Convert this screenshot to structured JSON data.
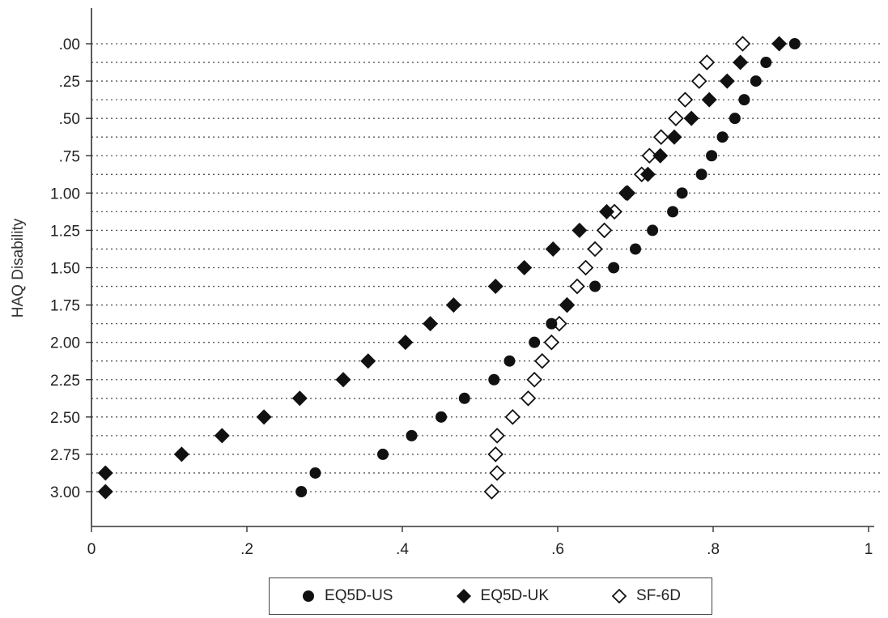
{
  "chart_data": {
    "type": "scatter",
    "orientation": "horizontal-dot-plot",
    "ylabel": "HAQ Disability",
    "xlabel": "",
    "xlim": [
      0,
      1
    ],
    "xticks": [
      0,
      0.2,
      0.4,
      0.6,
      0.8,
      1
    ],
    "xtick_labels": [
      "0",
      ".2",
      ".4",
      ".6",
      ".8",
      "1"
    ],
    "yticks": [
      0,
      0.25,
      0.5,
      0.75,
      1,
      1.25,
      1.5,
      1.75,
      2,
      2.25,
      2.5,
      2.75,
      3
    ],
    "ytick_labels": [
      ".00",
      ".25",
      ".50",
      ".75",
      "1.00",
      "1.25",
      "1.50",
      "1.75",
      "2.00",
      "2.25",
      "2.50",
      "2.75",
      "3.00"
    ],
    "y_categories": [
      0,
      0.125,
      0.25,
      0.375,
      0.5,
      0.625,
      0.75,
      0.875,
      1,
      1.125,
      1.25,
      1.375,
      1.5,
      1.625,
      1.75,
      1.875,
      2,
      2.125,
      2.25,
      2.375,
      2.5,
      2.625,
      2.75,
      2.875,
      3
    ],
    "grid": "dotted horizontal lines at each HAQ level",
    "legend_placement": "bottom",
    "series": [
      {
        "name": "EQ5D-US",
        "marker": "filled-circle",
        "values": [
          0.905,
          0.868,
          0.855,
          0.84,
          0.828,
          0.812,
          0.798,
          0.785,
          0.76,
          0.748,
          0.722,
          0.7,
          0.672,
          0.648,
          0.612,
          0.592,
          0.57,
          0.538,
          0.518,
          0.48,
          0.45,
          0.412,
          0.375,
          0.288,
          0.27
        ]
      },
      {
        "name": "EQ5D-UK",
        "marker": "filled-diamond",
        "values": [
          0.885,
          0.835,
          0.818,
          0.795,
          0.772,
          0.75,
          0.732,
          0.716,
          0.688,
          0.663,
          0.628,
          0.594,
          0.557,
          0.52,
          0.466,
          0.436,
          0.404,
          0.356,
          0.324,
          0.268,
          0.222,
          0.168,
          0.116,
          0.018,
          0.018
        ]
      },
      {
        "name": "SF-6D",
        "marker": "open-diamond",
        "values": [
          0.838,
          0.792,
          0.782,
          0.764,
          0.752,
          0.733,
          0.718,
          0.708,
          0.69,
          0.673,
          0.66,
          0.648,
          0.636,
          0.625,
          0.612,
          0.602,
          0.592,
          0.58,
          0.57,
          0.562,
          0.542,
          0.522,
          0.52,
          0.522,
          0.515
        ]
      }
    ]
  }
}
